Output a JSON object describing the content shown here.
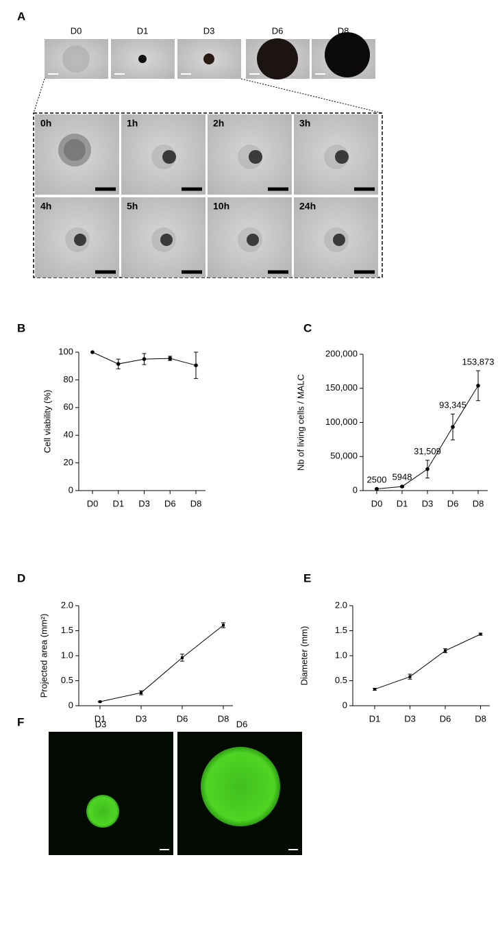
{
  "panel_labels": [
    "A",
    "B",
    "C",
    "D",
    "E",
    "F"
  ],
  "panel_a": {
    "days": [
      "D0",
      "D1",
      "D3",
      "D6",
      "D8"
    ],
    "hours": [
      "0h",
      "1h",
      "2h",
      "3h",
      "4h",
      "5h",
      "10h",
      "24h"
    ]
  },
  "chart_data": [
    {
      "type": "line",
      "y_label": "Cell viability (%)",
      "categories": [
        "D0",
        "D1",
        "D3",
        "D6",
        "D8"
      ],
      "values": [
        100,
        91.5,
        95,
        95.5,
        90.5
      ],
      "errors": [
        0,
        3.5,
        4,
        1.5,
        9.5
      ],
      "color": "#000000",
      "marker": "circle",
      "ylim": [
        0,
        100
      ],
      "yticks": [
        0,
        20,
        40,
        60,
        80,
        100
      ]
    },
    {
      "type": "line",
      "y_label": "Nb of living cells / MALC",
      "categories": [
        "D0",
        "D1",
        "D3",
        "D6",
        "D8"
      ],
      "values": [
        2500,
        5948,
        31509,
        93345,
        153873
      ],
      "value_labels": [
        "2500",
        "5948",
        "31,509",
        "93,345",
        "153,873"
      ],
      "errors": [
        500,
        1000,
        13000,
        19000,
        22000
      ],
      "color": "#000000",
      "marker": "circle",
      "ylim": [
        0,
        200000
      ],
      "yticks": [
        0,
        {
          "value": 50000,
          "label": "50,000"
        },
        {
          "value": 100000,
          "label": "100,000"
        },
        {
          "value": 150000,
          "label": "150,000"
        },
        {
          "value": 200000,
          "label": "200,000"
        }
      ]
    },
    {
      "type": "line",
      "y_label": "Projected area (mm²)",
      "categories": [
        "D1",
        "D3",
        "D6",
        "D8"
      ],
      "values": [
        0.08,
        0.26,
        0.96,
        1.61
      ],
      "errors": [
        0.01,
        0.04,
        0.07,
        0.05
      ],
      "color": "#000000",
      "marker": "square",
      "ylim": [
        0,
        2
      ],
      "yticks": [
        0,
        0.5,
        {
          "value": 1,
          "label": "1.0"
        },
        1.5,
        {
          "value": 2,
          "label": "2.0"
        }
      ]
    },
    {
      "type": "line",
      "y_label": "Diameter (mm)",
      "categories": [
        "D1",
        "D3",
        "D6",
        "D8"
      ],
      "values": [
        0.33,
        0.58,
        1.1,
        1.43
      ],
      "errors": [
        0.02,
        0.05,
        0.04,
        0.02
      ],
      "color": "#000000",
      "marker": "square",
      "ylim": [
        0,
        2
      ],
      "yticks": [
        0,
        0.5,
        {
          "value": 1,
          "label": "1.0"
        },
        1.5,
        {
          "value": 2,
          "label": "2.0"
        }
      ]
    }
  ],
  "panel_f": {
    "labels": [
      "D3",
      "D6"
    ]
  }
}
